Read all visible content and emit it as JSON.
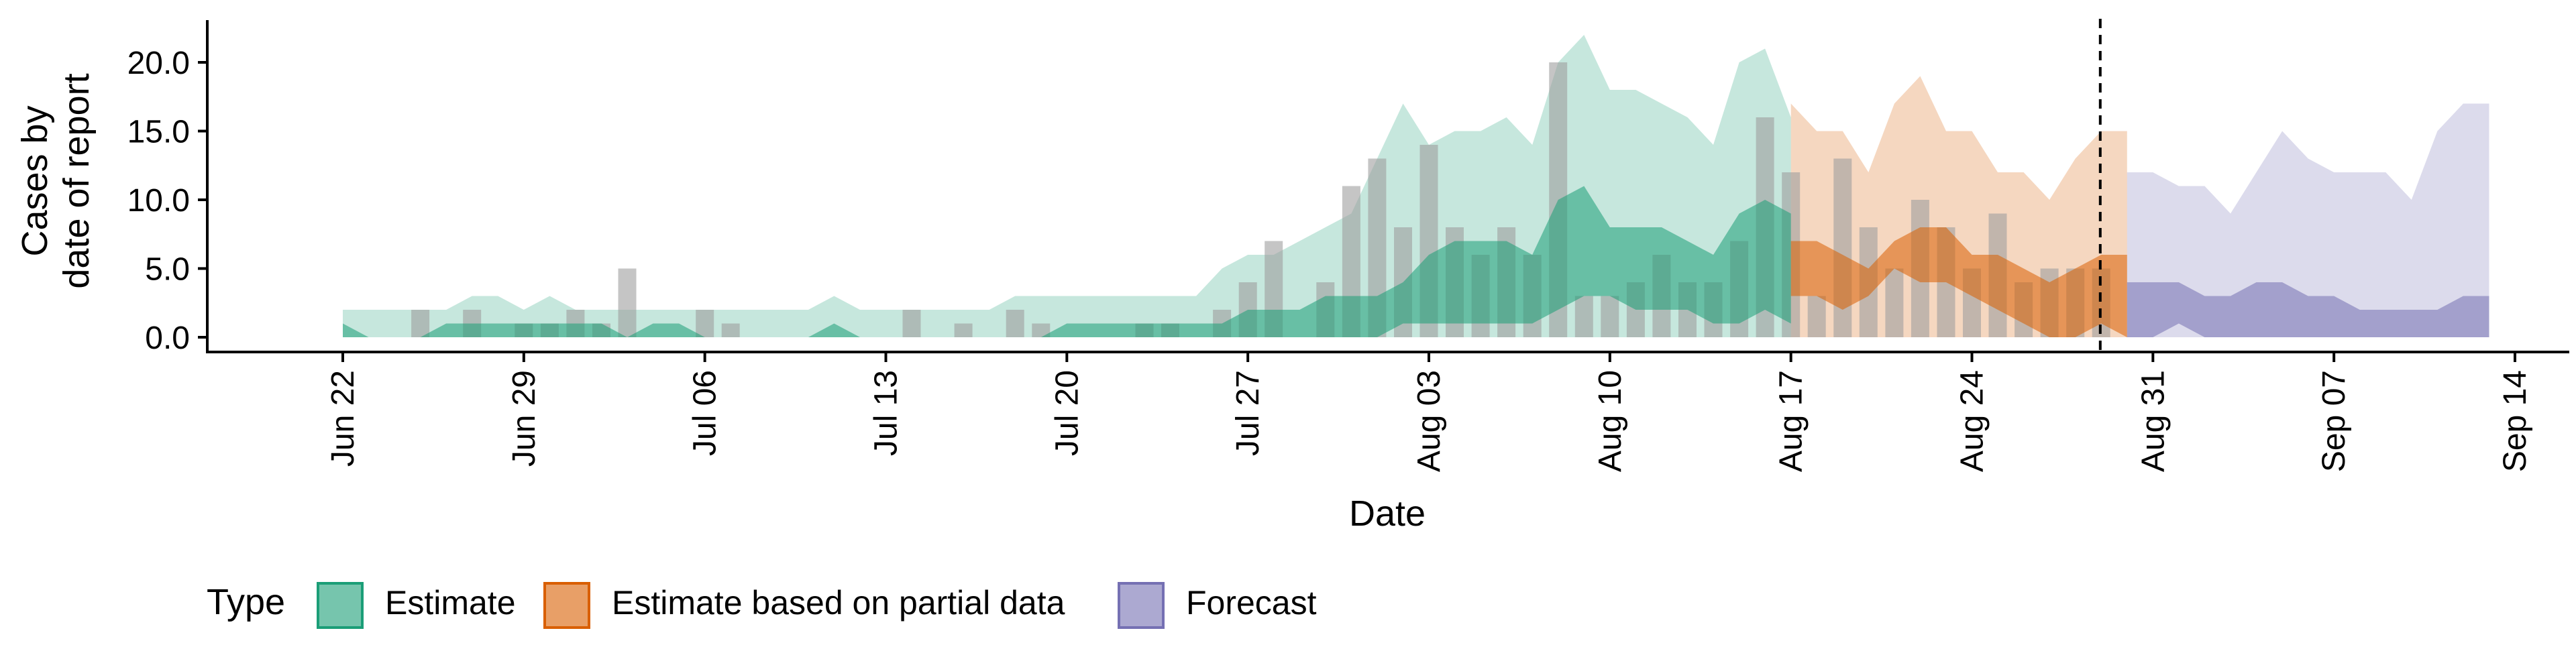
{
  "chart_data": {
    "type": "area",
    "title": "",
    "xlabel": "Date",
    "ylabel_lines": [
      "Cases by",
      "date of report"
    ],
    "ylim": [
      0,
      23
    ],
    "y_ticks": [
      "0.0",
      "5.0",
      "10.0",
      "15.0",
      "20.0"
    ],
    "y_tick_values": [
      0,
      5,
      10,
      15,
      20
    ],
    "x_ticks": [
      "Jun 22",
      "Jun 29",
      "Jul 06",
      "Jul 13",
      "Jul 20",
      "Jul 27",
      "Aug 03",
      "Aug 10",
      "Aug 17",
      "Aug 24",
      "Aug 31",
      "Sep 07",
      "Sep 14"
    ],
    "x_tick_dates": [
      "2020-06-22",
      "2020-06-29",
      "2020-07-06",
      "2020-07-13",
      "2020-07-20",
      "2020-07-27",
      "2020-08-03",
      "2020-08-10",
      "2020-08-17",
      "2020-08-24",
      "2020-08-31",
      "2020-09-07",
      "2020-09-14"
    ],
    "x_range": [
      "2020-06-22",
      "2020-09-14"
    ],
    "dates": [
      "2020-06-22",
      "2020-06-23",
      "2020-06-24",
      "2020-06-25",
      "2020-06-26",
      "2020-06-27",
      "2020-06-28",
      "2020-06-29",
      "2020-06-30",
      "2020-07-01",
      "2020-07-02",
      "2020-07-03",
      "2020-07-04",
      "2020-07-05",
      "2020-07-06",
      "2020-07-07",
      "2020-07-08",
      "2020-07-09",
      "2020-07-10",
      "2020-07-11",
      "2020-07-12",
      "2020-07-13",
      "2020-07-14",
      "2020-07-15",
      "2020-07-16",
      "2020-07-17",
      "2020-07-18",
      "2020-07-19",
      "2020-07-20",
      "2020-07-21",
      "2020-07-22",
      "2020-07-23",
      "2020-07-24",
      "2020-07-25",
      "2020-07-26",
      "2020-07-27",
      "2020-07-28",
      "2020-07-29",
      "2020-07-30",
      "2020-07-31",
      "2020-08-01",
      "2020-08-02",
      "2020-08-03",
      "2020-08-04",
      "2020-08-05",
      "2020-08-06",
      "2020-08-07",
      "2020-08-08",
      "2020-08-09",
      "2020-08-10",
      "2020-08-11",
      "2020-08-12",
      "2020-08-13",
      "2020-08-14",
      "2020-08-15",
      "2020-08-16",
      "2020-08-17",
      "2020-08-18",
      "2020-08-19",
      "2020-08-20",
      "2020-08-21",
      "2020-08-22",
      "2020-08-23",
      "2020-08-24",
      "2020-08-25",
      "2020-08-26",
      "2020-08-27",
      "2020-08-28",
      "2020-08-29",
      "2020-08-30",
      "2020-08-31",
      "2020-09-01",
      "2020-09-02",
      "2020-09-03",
      "2020-09-04",
      "2020-09-05",
      "2020-09-06",
      "2020-09-07",
      "2020-09-08",
      "2020-09-09",
      "2020-09-10",
      "2020-09-11",
      "2020-09-12"
    ],
    "reported_cases": {
      "dates": [
        "2020-06-25",
        "2020-06-27",
        "2020-06-29",
        "2020-06-30",
        "2020-07-01",
        "2020-07-02",
        "2020-07-03",
        "2020-07-06",
        "2020-07-07",
        "2020-07-14",
        "2020-07-16",
        "2020-07-18",
        "2020-07-19",
        "2020-07-23",
        "2020-07-24",
        "2020-07-26",
        "2020-07-27",
        "2020-07-28",
        "2020-07-30",
        "2020-07-31",
        "2020-08-01",
        "2020-08-02",
        "2020-08-03",
        "2020-08-04",
        "2020-08-05",
        "2020-08-06",
        "2020-08-07",
        "2020-08-08",
        "2020-08-09",
        "2020-08-10",
        "2020-08-11",
        "2020-08-12",
        "2020-08-13",
        "2020-08-14",
        "2020-08-15",
        "2020-08-16",
        "2020-08-17",
        "2020-08-18",
        "2020-08-19",
        "2020-08-20",
        "2020-08-21",
        "2020-08-22",
        "2020-08-23",
        "2020-08-24",
        "2020-08-25",
        "2020-08-26",
        "2020-08-27",
        "2020-08-28",
        "2020-08-29"
      ],
      "values": [
        2,
        2,
        1,
        1,
        2,
        1,
        5,
        2,
        1,
        2,
        1,
        2,
        1,
        1,
        1,
        2,
        4,
        7,
        4,
        11,
        13,
        8,
        14,
        8,
        6,
        8,
        6,
        20,
        3,
        3,
        4,
        6,
        4,
        4,
        7,
        16,
        12,
        3,
        13,
        8,
        5,
        10,
        8,
        5,
        9,
        4,
        5,
        5,
        5
      ]
    },
    "series": [
      {
        "name": "Estimate",
        "color": "#1b9e77",
        "x_start": "2020-06-22",
        "outer_lower": [
          0,
          0,
          0,
          0,
          0,
          0,
          0,
          0,
          0,
          0,
          0,
          0,
          0,
          0,
          0,
          0,
          0,
          0,
          0,
          0,
          0,
          0,
          0,
          0,
          0,
          0,
          0,
          0,
          0,
          0,
          0,
          0,
          0,
          0,
          0,
          0,
          0,
          0,
          0,
          0,
          0,
          0,
          0,
          0,
          0,
          0,
          0,
          0,
          0,
          0,
          0,
          0,
          0,
          0,
          0,
          0,
          0
        ],
        "outer_upper": [
          2,
          2,
          2,
          2,
          2,
          3,
          3,
          2,
          3,
          2,
          2,
          2,
          2,
          2,
          2,
          2,
          2,
          2,
          2,
          3,
          2,
          2,
          2,
          2,
          2,
          2,
          3,
          3,
          3,
          3,
          3,
          3,
          3,
          3,
          5,
          6,
          6,
          7,
          8,
          9,
          13,
          17,
          14,
          15,
          15,
          16,
          14,
          20,
          22,
          18,
          18,
          17,
          16,
          14,
          20,
          21,
          16
        ],
        "inner_lower": [
          0,
          0,
          0,
          0,
          0,
          0,
          0,
          0,
          0,
          0,
          0,
          0,
          0,
          0,
          0,
          0,
          0,
          0,
          0,
          0,
          0,
          0,
          0,
          0,
          0,
          0,
          0,
          0,
          0,
          0,
          0,
          0,
          0,
          0,
          0,
          0,
          0,
          0,
          0,
          0,
          0,
          1,
          1,
          1,
          1,
          1,
          1,
          2,
          3,
          3,
          2,
          2,
          2,
          1,
          1,
          2,
          1
        ],
        "inner_upper": [
          1,
          0,
          0,
          0,
          1,
          1,
          1,
          1,
          1,
          1,
          1,
          0,
          1,
          1,
          0,
          0,
          0,
          0,
          0,
          1,
          0,
          0,
          0,
          0,
          0,
          0,
          0,
          0,
          1,
          1,
          1,
          1,
          1,
          1,
          1,
          2,
          2,
          2,
          3,
          3,
          3,
          4,
          6,
          7,
          7,
          7,
          6,
          10,
          11,
          8,
          8,
          8,
          7,
          6,
          9,
          10,
          9
        ]
      },
      {
        "name": "Estimate based on partial data",
        "color": "#d95f02",
        "x_start": "2020-08-17",
        "outer_lower": [
          0,
          0,
          0,
          0,
          0,
          0,
          0,
          0,
          0,
          0,
          0,
          0,
          0,
          0
        ],
        "outer_upper": [
          17,
          15,
          15,
          12,
          17,
          19,
          15,
          15,
          12,
          12,
          10,
          13,
          15,
          15
        ],
        "inner_lower": [
          3,
          3,
          2,
          3,
          5,
          4,
          4,
          3,
          2,
          1,
          0,
          0,
          1,
          0
        ],
        "inner_upper": [
          7,
          7,
          6,
          5,
          7,
          8,
          8,
          6,
          6,
          5,
          4,
          5,
          6,
          6
        ]
      },
      {
        "name": "Forecast",
        "color": "#7570b3",
        "x_start": "2020-08-30",
        "outer_lower": [
          0,
          0,
          0,
          0,
          0,
          0,
          0,
          0,
          0,
          0,
          0,
          0,
          0,
          0,
          0
        ],
        "outer_upper": [
          12,
          12,
          11,
          11,
          9,
          12,
          15,
          13,
          12,
          12,
          12,
          10,
          15,
          17,
          17
        ],
        "inner_lower": [
          0,
          0,
          1,
          0,
          0,
          0,
          0,
          0,
          0,
          0,
          0,
          0,
          0,
          0,
          0
        ],
        "inner_upper": [
          4,
          4,
          4,
          3,
          3,
          4,
          4,
          3,
          3,
          2,
          2,
          2,
          2,
          3,
          3
        ]
      }
    ],
    "vline_date": "2020-08-30",
    "legend": {
      "position": "bottom",
      "title": "Type",
      "items": [
        "Estimate",
        "Estimate based on partial data",
        "Forecast"
      ]
    },
    "grid": false
  }
}
